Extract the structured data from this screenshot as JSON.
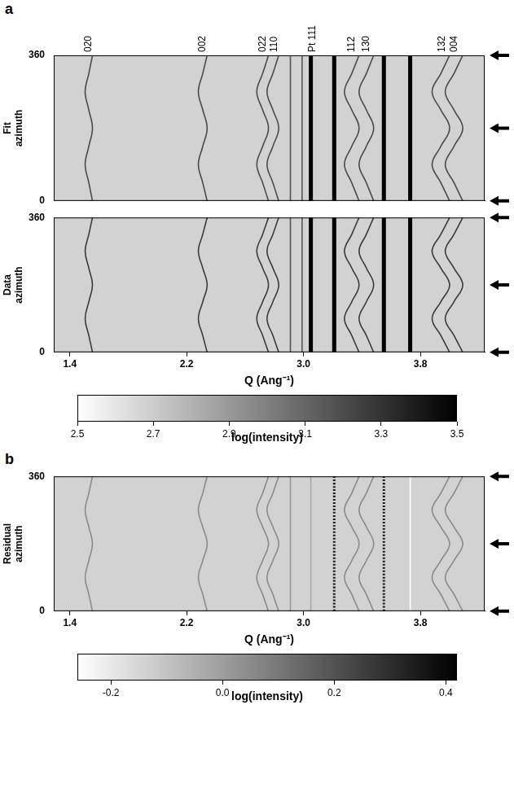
{
  "chart_data": [
    {
      "type": "line",
      "panel": "a",
      "ylabel": [
        "Fit",
        "azimuth"
      ],
      "tick_labels": "y",
      "xlim": [
        1.29,
        4.24
      ],
      "xticks": [
        1.4,
        2.2,
        {
          "value": 3.0,
          "label": "3.0"
        },
        3.8
      ],
      "ylim": [
        0,
        360
      ],
      "yticks": [
        0,
        360
      ],
      "peak_labels": [
        {
          "label": "020",
          "q": 1.53
        },
        {
          "label": "002",
          "q": 2.31
        },
        {
          "label": "022",
          "q": 2.72
        },
        {
          "label": "110",
          "q": 2.8
        },
        {
          "label": "Pt 111",
          "q": 3.06
        },
        {
          "label": "112",
          "q": 3.33
        },
        {
          "label": "130",
          "q": 3.43
        },
        {
          "label": "132",
          "q": 3.95
        },
        {
          "label": "004",
          "q": 4.03
        }
      ],
      "series": [
        {
          "color": "#4a4a4a",
          "x": [
            1.555,
            1.53,
            1.505,
            1.53,
            1.555,
            1.53,
            1.505,
            1.53,
            1.555
          ],
          "values": [
            0,
            45,
            90,
            135,
            180,
            225,
            270,
            315,
            360
          ]
        },
        {
          "color": "#4a4a4a",
          "x": [
            2.34,
            2.31,
            2.28,
            2.31,
            2.34,
            2.31,
            2.28,
            2.31,
            2.34
          ],
          "values": [
            0,
            45,
            90,
            135,
            180,
            225,
            270,
            315,
            360
          ]
        },
        {
          "color": "#4a4a4a",
          "x": [
            2.76,
            2.72,
            2.68,
            2.72,
            2.76,
            2.72,
            2.68,
            2.72,
            2.76
          ],
          "values": [
            0,
            45,
            90,
            135,
            180,
            225,
            270,
            315,
            360
          ]
        },
        {
          "color": "#4a4a4a",
          "x": [
            2.83,
            2.79,
            2.75,
            2.79,
            2.83,
            2.79,
            2.75,
            2.79,
            2.83
          ],
          "values": [
            0,
            45,
            90,
            135,
            180,
            225,
            270,
            315,
            360
          ]
        },
        {
          "color": "#4a4a4a",
          "x": [
            3.38,
            3.33,
            3.28,
            3.33,
            3.38,
            3.33,
            3.28,
            3.33,
            3.38
          ],
          "values": [
            0,
            45,
            90,
            135,
            180,
            225,
            270,
            315,
            360
          ]
        },
        {
          "color": "#4a4a4a",
          "x": [
            3.48,
            3.43,
            3.38,
            3.43,
            3.48,
            3.43,
            3.38,
            3.43,
            3.48
          ],
          "values": [
            0,
            45,
            90,
            135,
            180,
            225,
            270,
            315,
            360
          ]
        },
        {
          "color": "#4a4a4a",
          "x": [
            4.0,
            3.94,
            3.88,
            3.94,
            4.0,
            3.94,
            3.88,
            3.94,
            4.0
          ],
          "values": [
            0,
            45,
            90,
            135,
            180,
            225,
            270,
            315,
            360
          ]
        },
        {
          "color": "#4a4a4a",
          "x": [
            4.09,
            4.03,
            3.97,
            4.03,
            4.09,
            4.03,
            3.97,
            4.03,
            4.09
          ],
          "values": [
            0,
            45,
            90,
            135,
            180,
            225,
            270,
            315,
            360
          ]
        },
        {
          "color": "#555555",
          "x": [
            2.91,
            2.91
          ],
          "values": [
            0,
            360
          ]
        },
        {
          "color": "#555555",
          "x": [
            2.99,
            2.99
          ],
          "values": [
            0,
            360
          ]
        },
        {
          "color": "#000000",
          "line_style": "thick",
          "x": [
            3.05,
            3.05
          ],
          "values": [
            0,
            360
          ]
        },
        {
          "color": "#000000",
          "line_style": "thick",
          "x": [
            3.21,
            3.21
          ],
          "values": [
            0,
            360
          ]
        },
        {
          "color": "#000000",
          "line_style": "thick",
          "x": [
            3.55,
            3.55
          ],
          "values": [
            0,
            360
          ]
        },
        {
          "color": "#000000",
          "line_style": "thick",
          "x": [
            3.73,
            3.73
          ],
          "values": [
            0,
            360
          ]
        }
      ]
    },
    {
      "type": "line",
      "ylabel": [
        "Data",
        "azimuth"
      ],
      "xlabel": "Q (Ang⁻¹)",
      "xlim": [
        1.29,
        4.24
      ],
      "xticks": [
        1.4,
        2.2,
        {
          "value": 3.0,
          "label": "3.0"
        },
        3.8
      ],
      "ylim": [
        0,
        360
      ],
      "yticks": [
        0,
        360
      ],
      "series": [
        {
          "color": "#3a3a3a",
          "x": [
            1.555,
            1.53,
            1.505,
            1.53,
            1.555,
            1.53,
            1.505,
            1.53,
            1.555
          ],
          "values": [
            0,
            45,
            90,
            135,
            180,
            225,
            270,
            315,
            360
          ]
        },
        {
          "color": "#3a3a3a",
          "x": [
            2.34,
            2.31,
            2.28,
            2.31,
            2.34,
            2.31,
            2.28,
            2.31,
            2.34
          ],
          "values": [
            0,
            45,
            90,
            135,
            180,
            225,
            270,
            315,
            360
          ]
        },
        {
          "color": "#3a3a3a",
          "x": [
            2.76,
            2.72,
            2.68,
            2.72,
            2.76,
            2.72,
            2.68,
            2.72,
            2.76
          ],
          "values": [
            0,
            45,
            90,
            135,
            180,
            225,
            270,
            315,
            360
          ]
        },
        {
          "color": "#3a3a3a",
          "x": [
            2.83,
            2.79,
            2.75,
            2.79,
            2.83,
            2.79,
            2.75,
            2.79,
            2.83
          ],
          "values": [
            0,
            45,
            90,
            135,
            180,
            225,
            270,
            315,
            360
          ]
        },
        {
          "color": "#3a3a3a",
          "x": [
            3.38,
            3.33,
            3.28,
            3.33,
            3.38,
            3.33,
            3.28,
            3.33,
            3.38
          ],
          "values": [
            0,
            45,
            90,
            135,
            180,
            225,
            270,
            315,
            360
          ]
        },
        {
          "color": "#3a3a3a",
          "x": [
            3.48,
            3.43,
            3.38,
            3.43,
            3.48,
            3.43,
            3.38,
            3.43,
            3.48
          ],
          "values": [
            0,
            45,
            90,
            135,
            180,
            225,
            270,
            315,
            360
          ]
        },
        {
          "color": "#3a3a3a",
          "x": [
            4.0,
            3.94,
            3.88,
            3.94,
            4.0,
            3.94,
            3.88,
            3.94,
            4.0
          ],
          "values": [
            0,
            45,
            90,
            135,
            180,
            225,
            270,
            315,
            360
          ]
        },
        {
          "color": "#3a3a3a",
          "x": [
            4.09,
            4.03,
            3.97,
            4.03,
            4.09,
            4.03,
            3.97,
            4.03,
            4.09
          ],
          "values": [
            0,
            45,
            90,
            135,
            180,
            225,
            270,
            315,
            360
          ]
        },
        {
          "color": "#555555",
          "x": [
            2.91,
            2.91
          ],
          "values": [
            0,
            360
          ]
        },
        {
          "color": "#555555",
          "x": [
            2.99,
            2.99
          ],
          "values": [
            0,
            360
          ]
        },
        {
          "color": "#000000",
          "line_style": "thick",
          "x": [
            3.05,
            3.05
          ],
          "values": [
            0,
            360
          ]
        },
        {
          "color": "#000000",
          "line_style": "thick",
          "x": [
            3.21,
            3.21
          ],
          "values": [
            0,
            360
          ]
        },
        {
          "color": "#000000",
          "line_style": "thick",
          "x": [
            3.55,
            3.55
          ],
          "values": [
            0,
            360
          ]
        },
        {
          "color": "#000000",
          "line_style": "thick",
          "x": [
            3.73,
            3.73
          ],
          "values": [
            0,
            360
          ]
        }
      ]
    },
    {
      "type": "colorbar",
      "xlabel": "log(intensity)",
      "xlim": [
        2.5,
        3.5
      ],
      "xticks": [
        2.5,
        2.7,
        2.9,
        3.1,
        3.3,
        3.5
      ],
      "colors": [
        "#ffffff",
        "#000000"
      ]
    },
    {
      "type": "line",
      "panel": "b",
      "ylabel": [
        "Residual",
        "azimuth"
      ],
      "xlabel": "Q (Ang⁻¹)",
      "xlim": [
        1.29,
        4.24
      ],
      "xticks": [
        1.4,
        2.2,
        {
          "value": 3.0,
          "label": "3.0"
        },
        3.8
      ],
      "ylim": [
        0,
        360
      ],
      "yticks": [
        0,
        360
      ],
      "series": [
        {
          "color": "#8a8a8a",
          "x": [
            1.555,
            1.53,
            1.505,
            1.53,
            1.555,
            1.53,
            1.505,
            1.53,
            1.555
          ],
          "values": [
            0,
            45,
            90,
            135,
            180,
            225,
            270,
            315,
            360
          ]
        },
        {
          "color": "#8a8a8a",
          "x": [
            2.34,
            2.31,
            2.28,
            2.31,
            2.34,
            2.31,
            2.28,
            2.31,
            2.34
          ],
          "values": [
            0,
            45,
            90,
            135,
            180,
            225,
            270,
            315,
            360
          ]
        },
        {
          "color": "#8a8a8a",
          "x": [
            2.76,
            2.72,
            2.68,
            2.72,
            2.76,
            2.72,
            2.68,
            2.72,
            2.76
          ],
          "values": [
            0,
            45,
            90,
            135,
            180,
            225,
            270,
            315,
            360
          ]
        },
        {
          "color": "#8a8a8a",
          "x": [
            2.83,
            2.79,
            2.75,
            2.79,
            2.83,
            2.79,
            2.75,
            2.79,
            2.83
          ],
          "values": [
            0,
            45,
            90,
            135,
            180,
            225,
            270,
            315,
            360
          ]
        },
        {
          "color": "#8a8a8a",
          "x": [
            3.38,
            3.33,
            3.28,
            3.33,
            3.38,
            3.33,
            3.28,
            3.33,
            3.38
          ],
          "values": [
            0,
            45,
            90,
            135,
            180,
            225,
            270,
            315,
            360
          ]
        },
        {
          "color": "#8a8a8a",
          "x": [
            3.48,
            3.43,
            3.38,
            3.43,
            3.48,
            3.43,
            3.38,
            3.43,
            3.48
          ],
          "values": [
            0,
            45,
            90,
            135,
            180,
            225,
            270,
            315,
            360
          ]
        },
        {
          "color": "#8a8a8a",
          "x": [
            4.0,
            3.94,
            3.88,
            3.94,
            4.0,
            3.94,
            3.88,
            3.94,
            4.0
          ],
          "values": [
            0,
            45,
            90,
            135,
            180,
            225,
            270,
            315,
            360
          ]
        },
        {
          "color": "#8a8a8a",
          "x": [
            4.09,
            4.03,
            3.97,
            4.03,
            4.09,
            4.03,
            3.97,
            4.03,
            4.09
          ],
          "values": [
            0,
            45,
            90,
            135,
            180,
            225,
            270,
            315,
            360
          ]
        },
        {
          "color": "#999999",
          "x": [
            2.91,
            2.91
          ],
          "values": [
            0,
            360
          ]
        },
        {
          "color": "#aaaaaa",
          "x": [
            3.05,
            3.05
          ],
          "values": [
            0,
            360
          ]
        },
        {
          "color": "#1a1a1a",
          "line_style": "dotted",
          "x": [
            3.21,
            3.21
          ],
          "values": [
            0,
            360
          ]
        },
        {
          "color": "#1a1a1a",
          "line_style": "dotted",
          "x": [
            3.55,
            3.55
          ],
          "values": [
            0,
            360
          ]
        },
        {
          "color": "#ffffff",
          "x": [
            3.73,
            3.73
          ],
          "values": [
            0,
            360
          ]
        }
      ]
    },
    {
      "type": "colorbar",
      "xlabel": "log(intensity)",
      "xlim": [
        -0.26,
        0.42
      ],
      "xticks": [
        -0.2,
        {
          "value": 0,
          "label": "0.0"
        },
        0.2,
        0.4
      ],
      "colors": [
        "#ffffff",
        "#000000"
      ]
    }
  ]
}
